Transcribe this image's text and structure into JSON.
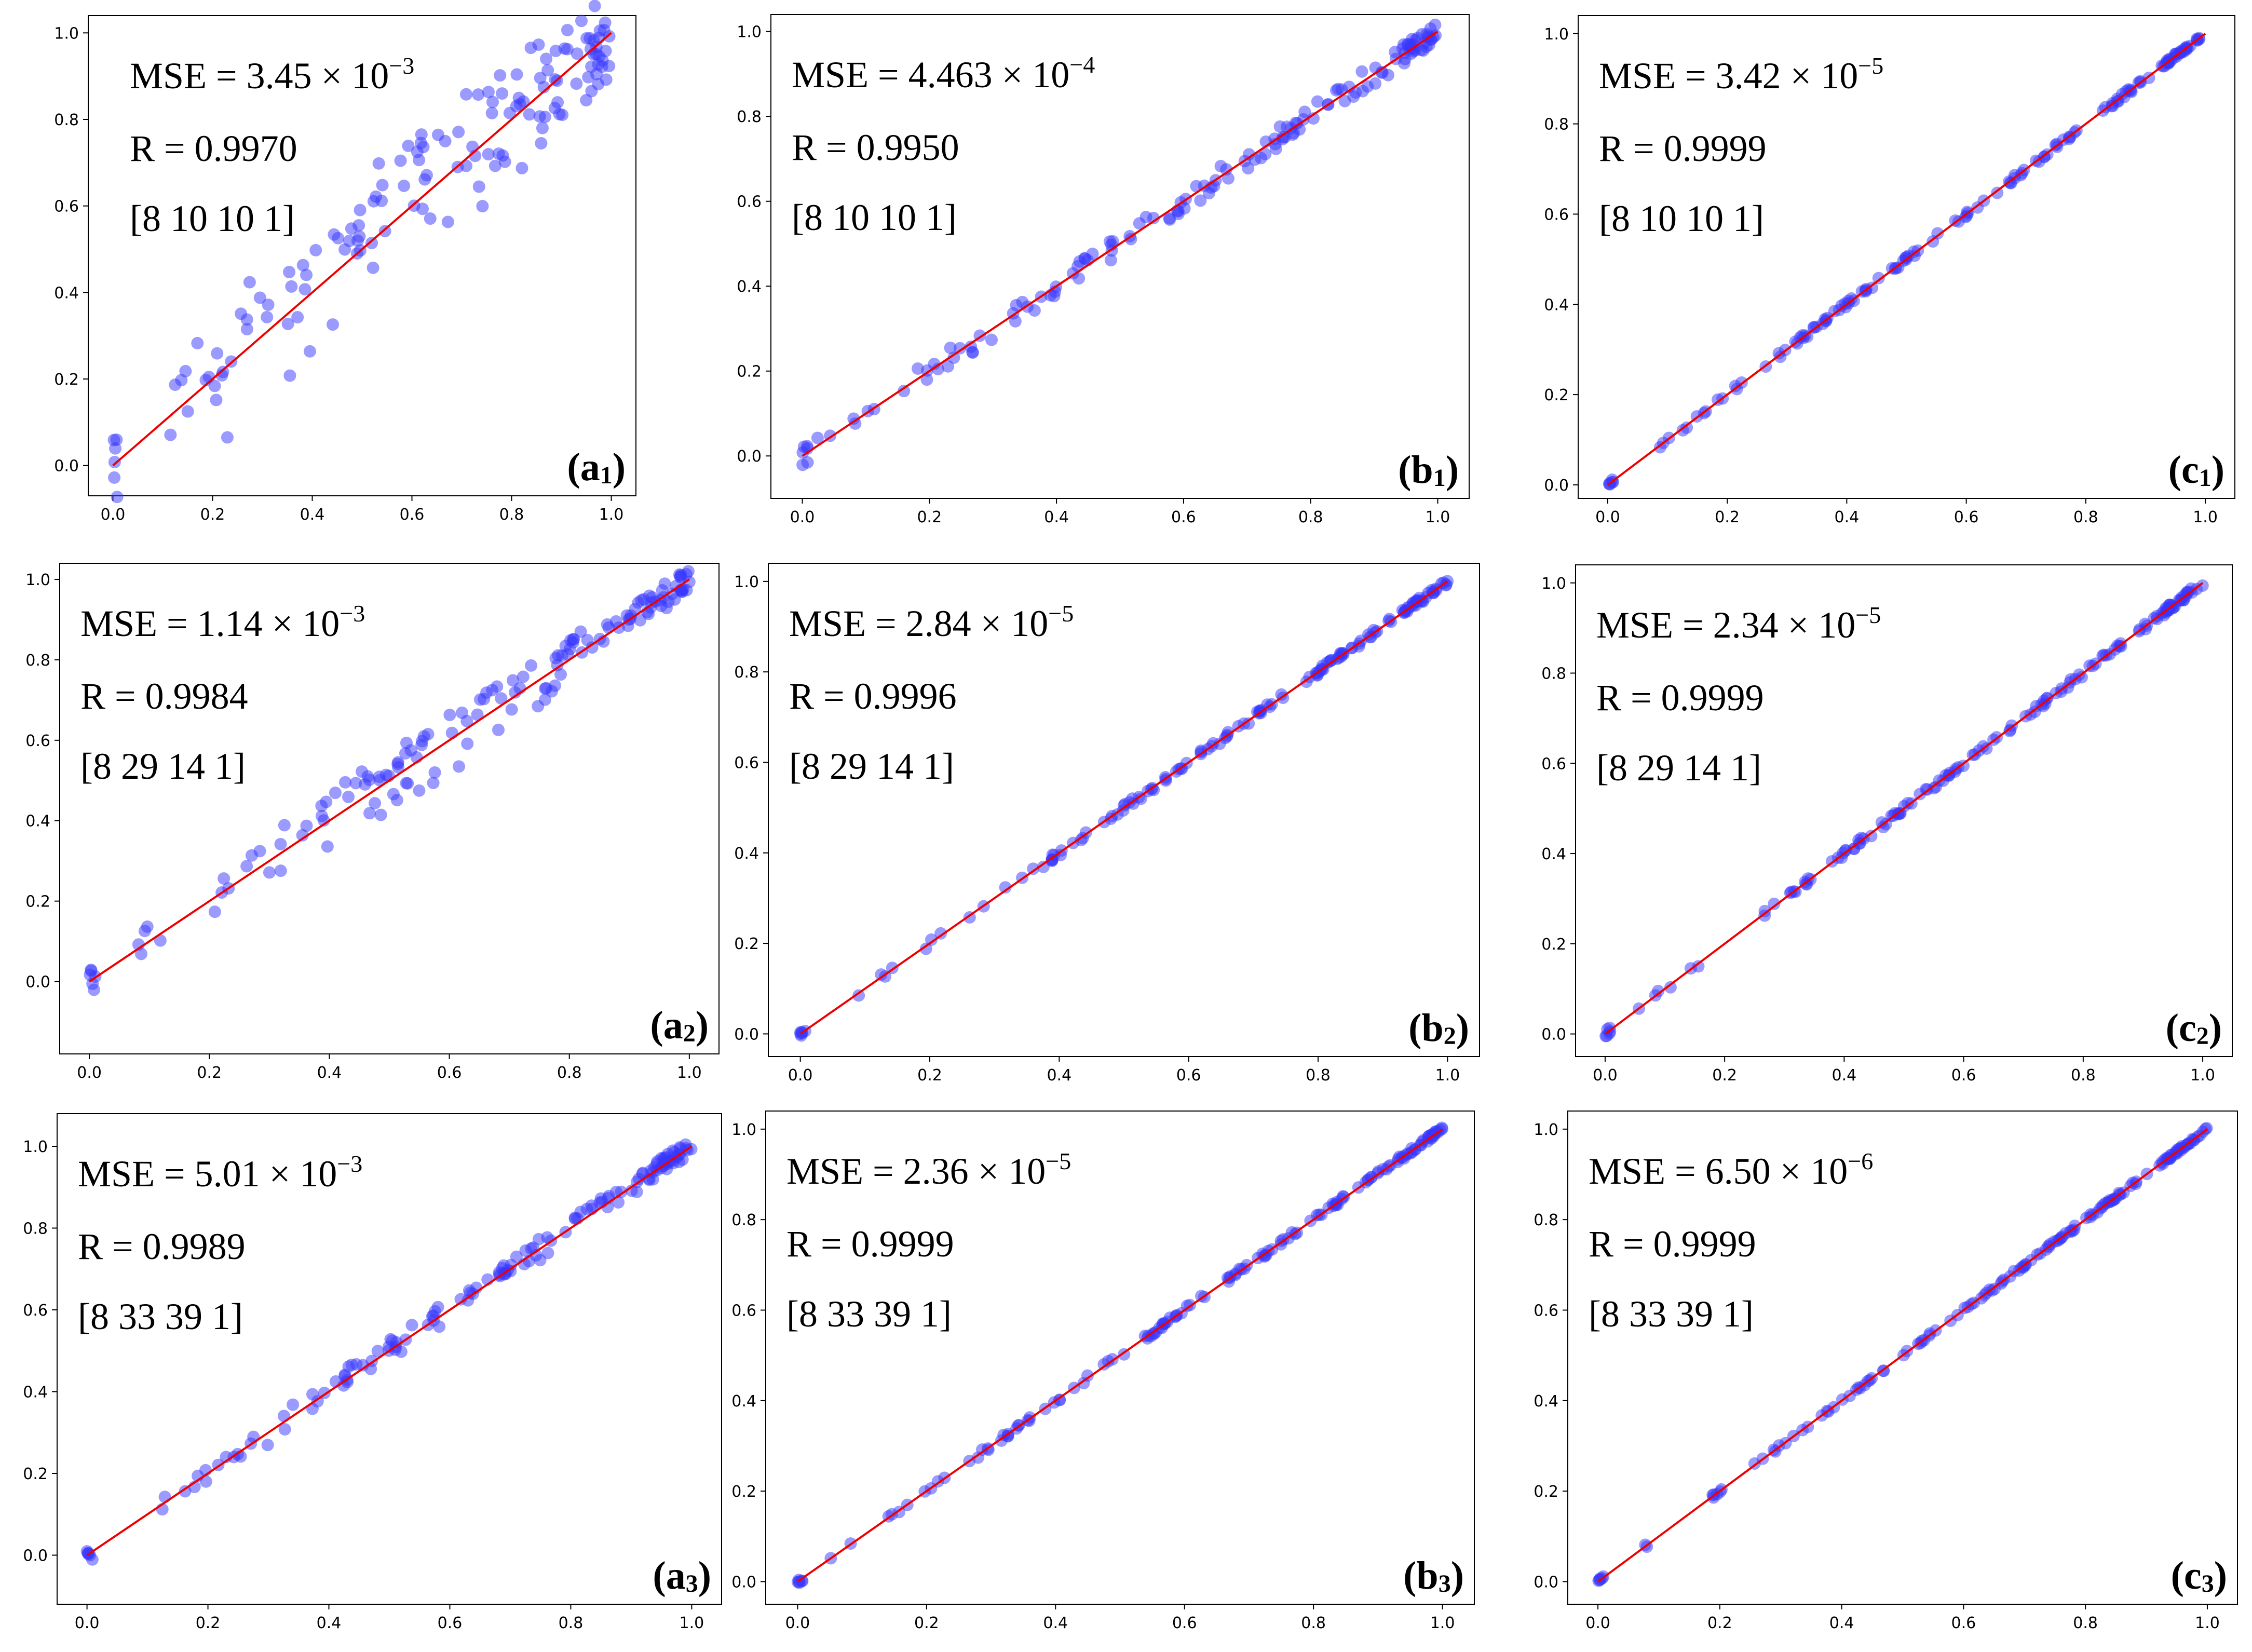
{
  "figure": {
    "colors": {
      "points": "#3535ff",
      "fit_line": "#ee0000",
      "frame": "#000000"
    }
  },
  "chart_data": [
    {
      "id": "a1",
      "type": "scatter",
      "label_letter": "a",
      "label_sub": "1",
      "mse_text": "MSE = 3.45 × 10",
      "mse_exp": "−3",
      "r_text": "R = 0.9970",
      "arch_text": "[8 10 10 1]",
      "xlim": [
        0,
        1
      ],
      "ylim": [
        -0.07,
        1.04
      ],
      "xticks": [
        "0.0",
        "0.2",
        "0.4",
        "0.6",
        "0.8",
        "1.0"
      ],
      "yticks": [
        "0.0",
        "0.2",
        "0.4",
        "0.6",
        "0.8",
        "1.0"
      ],
      "noise": 0.1,
      "offset": 0.07,
      "seed": 11
    },
    {
      "id": "b1",
      "type": "scatter",
      "label_letter": "b",
      "label_sub": "1",
      "mse_text": "MSE = 4.463 × 10",
      "mse_exp": "−4",
      "r_text": "R = 0.9950",
      "arch_text": "[8 10 10 1]",
      "xlim": [
        0,
        1
      ],
      "ylim": [
        -0.1,
        1.04
      ],
      "xticks": [
        "0.0",
        "0.2",
        "0.4",
        "0.6",
        "0.8",
        "1.0"
      ],
      "yticks": [
        "0.0",
        "0.2",
        "0.4",
        "0.6",
        "0.8",
        "1.0"
      ],
      "noise": 0.025,
      "offset": 0.0,
      "seed": 22
    },
    {
      "id": "c1",
      "type": "scatter",
      "label_letter": "c",
      "label_sub": "1",
      "mse_text": "MSE = 3.42 × 10",
      "mse_exp": "−5",
      "r_text": "R = 0.9999",
      "arch_text": "[8 10 10 1]",
      "xlim": [
        0,
        1
      ],
      "ylim": [
        -0.03,
        1.04
      ],
      "xticks": [
        "0.0",
        "0.2",
        "0.4",
        "0.6",
        "0.8",
        "1.0"
      ],
      "yticks": [
        "0.0",
        "0.2",
        "0.4",
        "0.6",
        "0.8",
        "1.0"
      ],
      "noise": 0.006,
      "offset": 0.0,
      "seed": 33
    },
    {
      "id": "a2",
      "type": "scatter",
      "label_letter": "a",
      "label_sub": "2",
      "mse_text": "MSE = 1.14 × 10",
      "mse_exp": "−3",
      "r_text": "R = 0.9984",
      "arch_text": "[8 29 14 1]",
      "xlim": [
        0,
        1
      ],
      "ylim": [
        -0.18,
        1.04
      ],
      "xticks": [
        "0.0",
        "0.2",
        "0.4",
        "0.6",
        "0.8",
        "1.0"
      ],
      "yticks": [
        "0.0",
        "0.2",
        "0.4",
        "0.6",
        "0.8",
        "1.0"
      ],
      "noise": 0.03,
      "offset": 0.04,
      "seed": 44
    },
    {
      "id": "b2",
      "type": "scatter",
      "label_letter": "b",
      "label_sub": "2",
      "mse_text": "MSE = 2.84 × 10",
      "mse_exp": "−5",
      "r_text": "R = 0.9996",
      "arch_text": "[8 29 14 1]",
      "xlim": [
        0,
        1
      ],
      "ylim": [
        -0.05,
        1.04
      ],
      "xticks": [
        "0.0",
        "0.2",
        "0.4",
        "0.6",
        "0.8",
        "1.0"
      ],
      "yticks": [
        "0.0",
        "0.2",
        "0.4",
        "0.6",
        "0.8",
        "1.0"
      ],
      "noise": 0.007,
      "offset": 0.0,
      "seed": 55
    },
    {
      "id": "c2",
      "type": "scatter",
      "label_letter": "c",
      "label_sub": "2",
      "mse_text": "MSE = 2.34 × 10",
      "mse_exp": "−5",
      "r_text": "R = 0.9999",
      "arch_text": "[8 29 14 1]",
      "xlim": [
        0,
        1
      ],
      "ylim": [
        -0.05,
        1.04
      ],
      "xticks": [
        "0.0",
        "0.2",
        "0.4",
        "0.6",
        "0.8",
        "1.0"
      ],
      "yticks": [
        "0.0",
        "0.2",
        "0.4",
        "0.6",
        "0.8",
        "1.0"
      ],
      "noise": 0.007,
      "offset": 0.0,
      "seed": 66
    },
    {
      "id": "a3",
      "type": "scatter",
      "label_letter": "a",
      "label_sub": "3",
      "mse_text": "MSE = 5.01 × 10",
      "mse_exp": "−3",
      "r_text": "R = 0.9989",
      "arch_text": "[8 33 39 1]",
      "xlim": [
        0,
        1
      ],
      "ylim": [
        -0.12,
        1.08
      ],
      "xticks": [
        "0.0",
        "0.2",
        "0.4",
        "0.6",
        "0.8",
        "1.0"
      ],
      "yticks": [
        "0.0",
        "0.2",
        "0.4",
        "0.6",
        "0.8",
        "1.0"
      ],
      "noise": 0.02,
      "offset": 0.01,
      "seed": 77
    },
    {
      "id": "b3",
      "type": "scatter",
      "label_letter": "b",
      "label_sub": "3",
      "mse_text": "MSE = 2.36 × 10",
      "mse_exp": "−5",
      "r_text": "R = 0.9999",
      "arch_text": "[8 33 39 1]",
      "xlim": [
        0,
        1
      ],
      "ylim": [
        -0.05,
        1.04
      ],
      "xticks": [
        "0.0",
        "0.2",
        "0.4",
        "0.6",
        "0.8",
        "1.0"
      ],
      "yticks": [
        "0.0",
        "0.2",
        "0.4",
        "0.6",
        "0.8",
        "1.0"
      ],
      "noise": 0.006,
      "offset": 0.0,
      "seed": 88
    },
    {
      "id": "c3",
      "type": "scatter",
      "label_letter": "c",
      "label_sub": "3",
      "mse_text": "MSE = 6.50 × 10",
      "mse_exp": "−6",
      "r_text": "R = 0.9999",
      "arch_text": "[8 33 39 1]",
      "xlim": [
        0,
        1
      ],
      "ylim": [
        -0.05,
        1.04
      ],
      "xticks": [
        "0.0",
        "0.2",
        "0.4",
        "0.6",
        "0.8",
        "1.0"
      ],
      "yticks": [
        "0.0",
        "0.2",
        "0.4",
        "0.6",
        "0.8",
        "1.0"
      ],
      "noise": 0.004,
      "offset": 0.0,
      "seed": 99
    }
  ]
}
